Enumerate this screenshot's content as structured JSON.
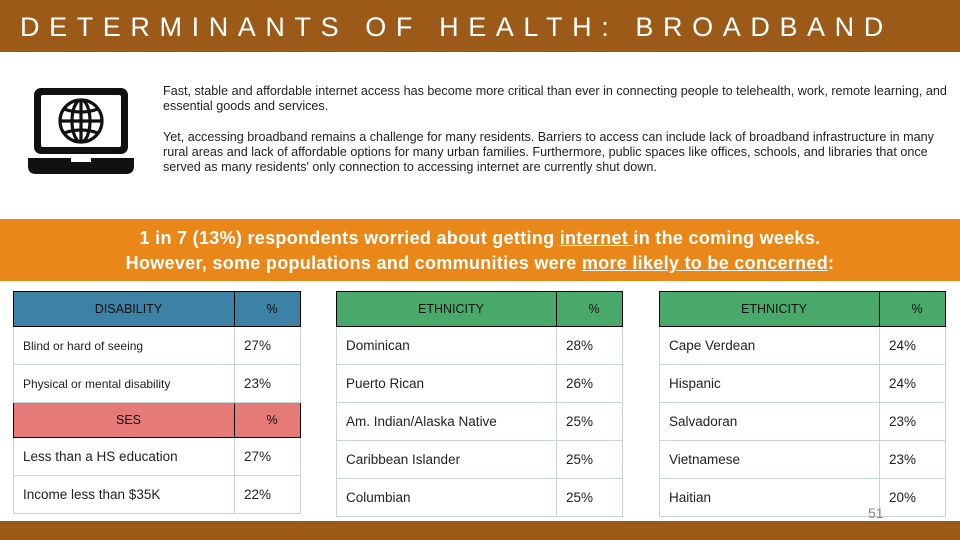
{
  "title": "DETERMINANTS OF HEALTH: BROADBAND",
  "icon": "laptop-globe-icon",
  "paragraphs": {
    "p1": "Fast, stable and affordable internet access has become more critical than ever in connecting people to telehealth, work, remote learning, and essential goods and services.",
    "p2": "Yet, accessing broadband remains a challenge for many residents. Barriers to access can include lack of broadband infrastructure in many rural areas and lack of affordable options for many urban families. Furthermore, public spaces like offices, schools, and libraries that once served as many residents' only connection to accessing internet are currently shut down."
  },
  "banner": {
    "line1_a": "1 in 7 (13%) respondents worried about getting ",
    "line1_u": "internet ",
    "line1_b": "in the coming weeks.",
    "line2_a": "However, some populations and communities were ",
    "line2_u": "more likely to be concerned",
    "line2_b": ":"
  },
  "table1": {
    "header": "DISABILITY",
    "pct_header": "%",
    "rows": [
      {
        "label": "Blind or hard of seeing",
        "value": "27%"
      },
      {
        "label": "Physical or mental disability",
        "value": "23%"
      }
    ],
    "ses_header": "SES",
    "ses_pct_header": "%",
    "ses_rows": [
      {
        "label": "Less than a HS education",
        "value": "27%"
      },
      {
        "label": "Income less than $35K",
        "value": "22%"
      }
    ]
  },
  "table2": {
    "header": "ETHNICITY",
    "pct_header": "%",
    "rows": [
      {
        "label": "Dominican",
        "value": "28%"
      },
      {
        "label": "Puerto Rican",
        "value": "26%"
      },
      {
        "label": "Am. Indian/Alaska Native",
        "value": "25%"
      },
      {
        "label": "Caribbean Islander",
        "value": "25%"
      },
      {
        "label": "Columbian",
        "value": "25%"
      }
    ]
  },
  "table3": {
    "header": "ETHNICITY",
    "pct_header": "%",
    "rows": [
      {
        "label": "Cape Verdean",
        "value": "24%"
      },
      {
        "label": "Hispanic",
        "value": "24%"
      },
      {
        "label": "Salvadoran",
        "value": "23%"
      },
      {
        "label": "Vietnamese",
        "value": "23%"
      },
      {
        "label": "Haitian",
        "value": "20%"
      }
    ]
  },
  "page_number": "51",
  "colors": {
    "title_bar": "#9c5a19",
    "banner": "#e98718",
    "disability_header": "#3d81a4",
    "ethnicity_header": "#49a96b",
    "ses_header": "#e57a77"
  }
}
